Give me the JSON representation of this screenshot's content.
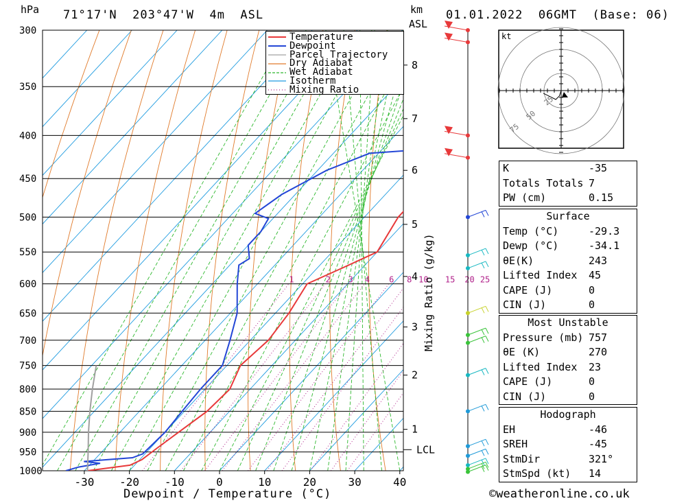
{
  "header": {
    "pressure_unit": "hPa",
    "location": "71°17'N  203°47'W  4m  ASL",
    "km_label": "km",
    "asl_label": "ASL",
    "datetime": "01.01.2022  06GMT  (Base: 06)"
  },
  "chart_data": {
    "type": "line",
    "title": "71°17'N  203°47'W  4m  ASL",
    "xlabel": "Dewpoint / Temperature (°C)",
    "ylabel": "hPa",
    "pressure_levels": [
      300,
      350,
      400,
      450,
      500,
      550,
      600,
      650,
      700,
      750,
      800,
      850,
      900,
      950,
      1000
    ],
    "temperature_ticks": [
      -30,
      -20,
      -10,
      0,
      10,
      20,
      30,
      40
    ],
    "xlim": [
      -40,
      40
    ],
    "ylim": [
      1000,
      300
    ],
    "km_ticks": [
      {
        "label": "1",
        "pressure": 893
      },
      {
        "label": "2",
        "pressure": 770
      },
      {
        "label": "3",
        "pressure": 675
      },
      {
        "label": "4",
        "pressure": 588
      },
      {
        "label": "5",
        "pressure": 510
      },
      {
        "label": "6",
        "pressure": 440
      },
      {
        "label": "7",
        "pressure": 382
      },
      {
        "label": "8",
        "pressure": 330
      }
    ],
    "lcl_label": "LCL",
    "lcl_pressure": 944,
    "mixing_ratio_label": "Mixing Ratio (g/kg)",
    "mixing_ratio_values": [
      "1",
      "2",
      "3",
      "4",
      "6",
      "8",
      "10",
      "15",
      "20",
      "25"
    ],
    "legend": [
      "Temperature",
      "Dewpoint",
      "Parcel Trajectory",
      "Dry Adiabat",
      "Wet Adiabat",
      "Isotherm",
      "Mixing Ratio"
    ],
    "legend_position": "top-right",
    "series": [
      {
        "name": "Temperature",
        "color": "#e8393a",
        "points": [
          [
            1000,
            -29.3
          ],
          [
            985,
            -21
          ],
          [
            970,
            -19.5
          ],
          [
            940,
            -18.5
          ],
          [
            900,
            -17
          ],
          [
            850,
            -15
          ],
          [
            800,
            -14.5
          ],
          [
            750,
            -17
          ],
          [
            700,
            -16
          ],
          [
            650,
            -17
          ],
          [
            600,
            -19
          ],
          [
            575,
            -14.5
          ],
          [
            550,
            -10
          ],
          [
            500,
            -12.5
          ],
          [
            450,
            -12.5
          ],
          [
            420,
            -13
          ],
          [
            400,
            -14
          ],
          [
            370,
            -16
          ],
          [
            350,
            -18
          ],
          [
            320,
            -20
          ],
          [
            300,
            -19.5
          ]
        ]
      },
      {
        "name": "Dewpoint",
        "color": "#2346d6",
        "points": [
          [
            1000,
            -34.1
          ],
          [
            990,
            -32
          ],
          [
            980,
            -28
          ],
          [
            975,
            -32
          ],
          [
            965,
            -22
          ],
          [
            955,
            -20.5
          ],
          [
            900,
            -20
          ],
          [
            850,
            -20.5
          ],
          [
            800,
            -21
          ],
          [
            750,
            -21
          ],
          [
            700,
            -24.5
          ],
          [
            650,
            -28.5
          ],
          [
            600,
            -34.5
          ],
          [
            570,
            -38
          ],
          [
            560,
            -37
          ],
          [
            540,
            -40
          ],
          [
            520,
            -40
          ],
          [
            502,
            -41
          ],
          [
            495,
            -45
          ],
          [
            470,
            -43
          ],
          [
            440,
            -38
          ],
          [
            420,
            -32
          ],
          [
            412,
            -12
          ],
          [
            400,
            -19
          ],
          [
            360,
            -15
          ],
          [
            340,
            -12
          ],
          [
            320,
            -11
          ],
          [
            310,
            -12
          ],
          [
            300,
            -11
          ]
        ]
      },
      {
        "name": "Parcel Trajectory",
        "color": "#a0a0a0",
        "points": [
          [
            1000,
            -29.3
          ],
          [
            950,
            -33
          ],
          [
            900,
            -37
          ],
          [
            850,
            -41
          ],
          [
            800,
            -45
          ],
          [
            750,
            -49
          ]
        ]
      }
    ]
  },
  "hodograph": {
    "unit_label": "kt",
    "ring_labels": [
      "25",
      "50",
      "75"
    ],
    "trace": [
      [
        0,
        0
      ],
      [
        -2,
        -6
      ],
      [
        -6,
        -10
      ],
      [
        -12,
        -7
      ],
      [
        -20,
        -3
      ]
    ]
  },
  "wind_profile": [
    {
      "pressure": 300,
      "color": "#e8393a"
    },
    {
      "pressure": 310,
      "color": "#e8393a"
    },
    {
      "pressure": 400,
      "color": "#e8393a"
    },
    {
      "pressure": 425,
      "color": "#e8393a"
    },
    {
      "pressure": 500,
      "color": "#2346d6"
    },
    {
      "pressure": 555,
      "color": "#17b8c2"
    },
    {
      "pressure": 575,
      "color": "#17b8c2"
    },
    {
      "pressure": 650,
      "color": "#c7d22a"
    },
    {
      "pressure": 690,
      "color": "#3ac43a"
    },
    {
      "pressure": 705,
      "color": "#3ac43a"
    },
    {
      "pressure": 770,
      "color": "#17b8c2"
    },
    {
      "pressure": 850,
      "color": "#1f9ad8"
    },
    {
      "pressure": 935,
      "color": "#1f9ad8"
    },
    {
      "pressure": 960,
      "color": "#1f9ad8"
    },
    {
      "pressure": 985,
      "color": "#17b8c2"
    },
    {
      "pressure": 995,
      "color": "#3ac43a"
    },
    {
      "pressure": 1003,
      "color": "#3ac43a"
    }
  ],
  "indices": [
    {
      "label": "K",
      "value": "-35"
    },
    {
      "label": "Totals Totals",
      "value": "7"
    },
    {
      "label": "PW (cm)",
      "value": "0.15"
    }
  ],
  "surface": {
    "title": "Surface",
    "rows": [
      {
        "label": "Temp (°C)",
        "value": "-29.3"
      },
      {
        "label": "Dewp (°C)",
        "value": "-34.1"
      },
      {
        "label": "θE(K)",
        "value": "243"
      },
      {
        "label": "Lifted Index",
        "value": "45"
      },
      {
        "label": "CAPE (J)",
        "value": "0"
      },
      {
        "label": "CIN (J)",
        "value": "0"
      }
    ]
  },
  "most_unstable": {
    "title": "Most Unstable",
    "rows": [
      {
        "label": "Pressure (mb)",
        "value": "757"
      },
      {
        "label": "θE (K)",
        "value": "270"
      },
      {
        "label": "Lifted Index",
        "value": "23"
      },
      {
        "label": "CAPE (J)",
        "value": "0"
      },
      {
        "label": "CIN (J)",
        "value": "0"
      }
    ]
  },
  "hodograph_table": {
    "title": "Hodograph",
    "rows": [
      {
        "label": "EH",
        "value": "-46"
      },
      {
        "label": "SREH",
        "value": "-45"
      },
      {
        "label": "StmDir",
        "value": "321°"
      },
      {
        "label": "StmSpd (kt)",
        "value": "14"
      }
    ]
  },
  "footer": {
    "copyright": "©weatheronline.co.uk"
  }
}
